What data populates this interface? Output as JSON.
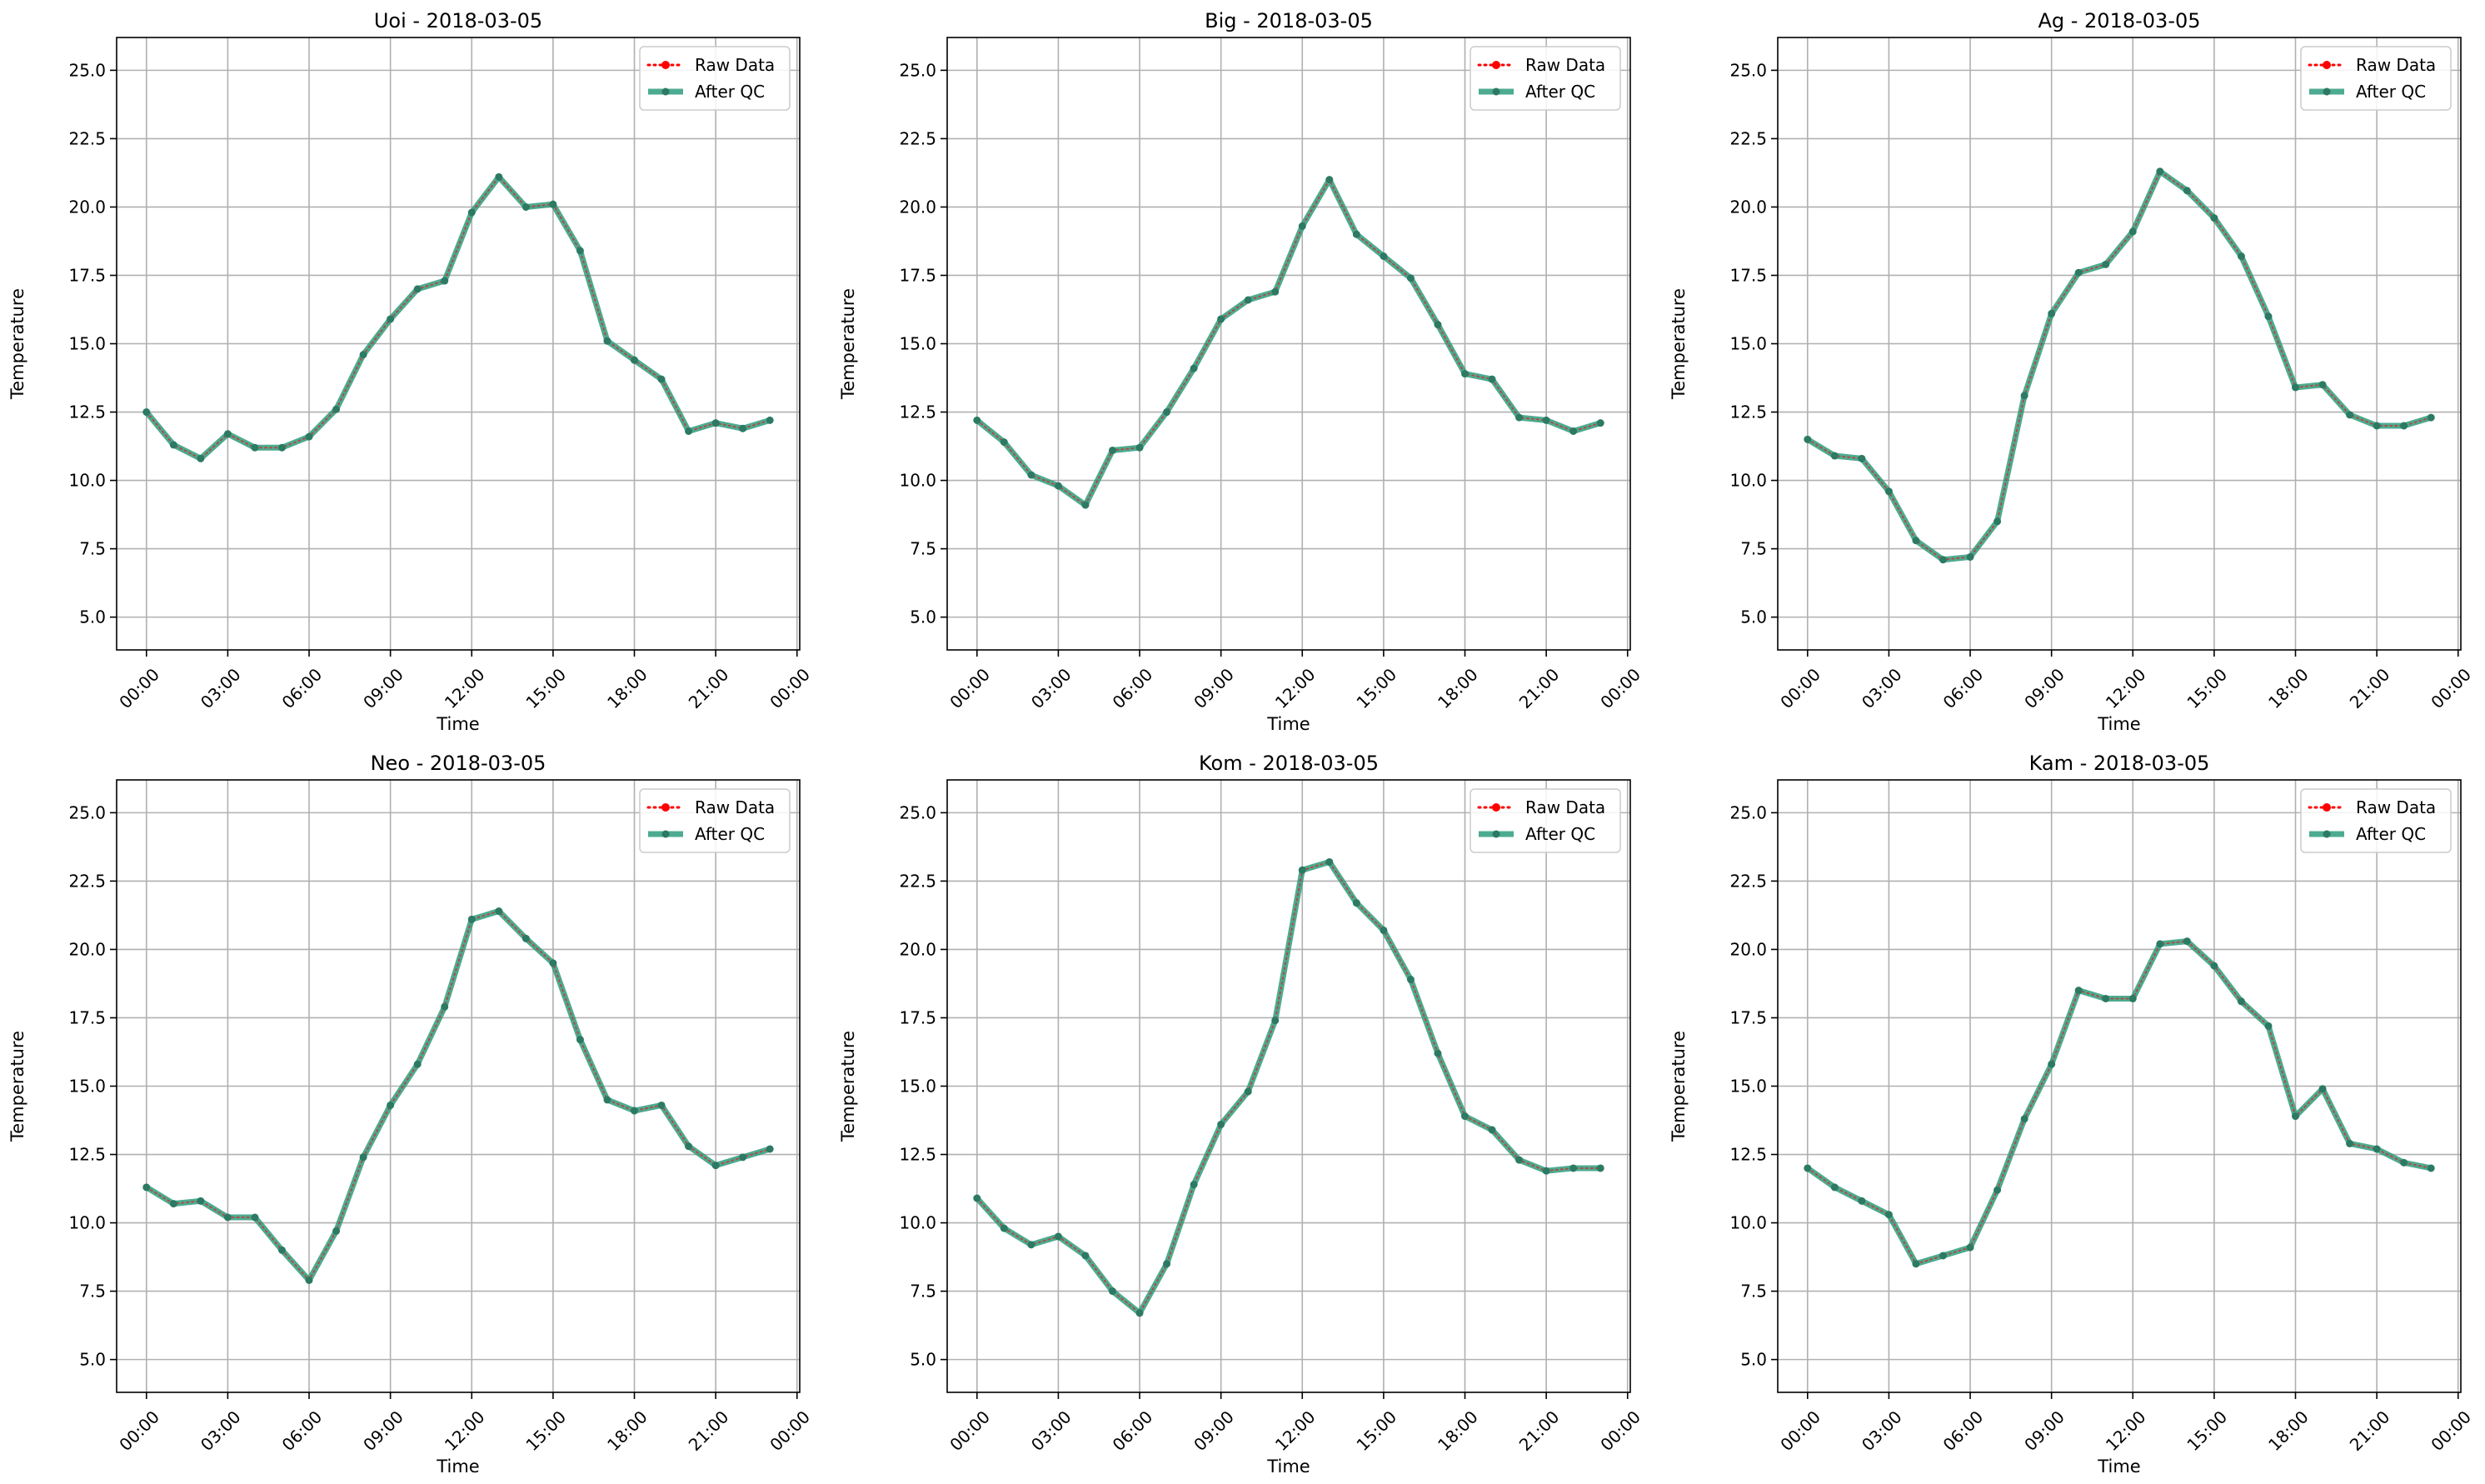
{
  "figure": {
    "background": "#ffffff"
  },
  "colors": {
    "raw": "#ff0000",
    "qc": "#2e9c7e",
    "qc_marker": "#2d7a64",
    "grid": "#b0b0b0",
    "axis": "#000000"
  },
  "legend": {
    "raw_label": "Raw Data",
    "qc_label": "After QC",
    "placement": "top-right"
  },
  "chart_data": [
    {
      "type": "line",
      "title": "Uoi - 2018-03-05",
      "xlabel": "Time",
      "ylabel": "Temperature",
      "xlim": [
        -1.1,
        24.1
      ],
      "ylim": [
        3.8,
        26.2
      ],
      "xticks": [
        0,
        3,
        6,
        9,
        12,
        15,
        18,
        21,
        24
      ],
      "xtick_labels": [
        "00:00",
        "03:00",
        "06:00",
        "09:00",
        "12:00",
        "15:00",
        "18:00",
        "21:00",
        "00:00"
      ],
      "yticks": [
        5.0,
        7.5,
        10.0,
        12.5,
        15.0,
        17.5,
        20.0,
        22.5,
        25.0
      ],
      "ytick_labels": [
        "5.0",
        "7.5",
        "10.0",
        "12.5",
        "15.0",
        "17.5",
        "20.0",
        "22.5",
        "25.0"
      ],
      "grid": true,
      "x": [
        0,
        1,
        2,
        3,
        4,
        5,
        6,
        7,
        8,
        9,
        10,
        11,
        12,
        13,
        14,
        15,
        16,
        17,
        18,
        19,
        20,
        21,
        22,
        23
      ],
      "series": [
        {
          "name": "Raw Data",
          "values": [
            12.5,
            11.3,
            10.8,
            11.7,
            11.2,
            11.2,
            11.6,
            12.6,
            14.6,
            15.9,
            17.0,
            17.3,
            19.8,
            21.1,
            20.0,
            20.1,
            18.4,
            15.1,
            14.4,
            13.7,
            11.8,
            12.1,
            11.9,
            12.2
          ]
        },
        {
          "name": "After QC",
          "values": [
            12.5,
            11.3,
            10.8,
            11.7,
            11.2,
            11.2,
            11.6,
            12.6,
            14.6,
            15.9,
            17.0,
            17.3,
            19.8,
            21.1,
            20.0,
            20.1,
            18.4,
            15.1,
            14.4,
            13.7,
            11.8,
            12.1,
            11.9,
            12.2
          ]
        }
      ]
    },
    {
      "type": "line",
      "title": "Big - 2018-03-05",
      "xlabel": "Time",
      "ylabel": "Temperature",
      "xlim": [
        -1.1,
        24.1
      ],
      "ylim": [
        3.8,
        26.2
      ],
      "xticks": [
        0,
        3,
        6,
        9,
        12,
        15,
        18,
        21,
        24
      ],
      "xtick_labels": [
        "00:00",
        "03:00",
        "06:00",
        "09:00",
        "12:00",
        "15:00",
        "18:00",
        "21:00",
        "00:00"
      ],
      "yticks": [
        5.0,
        7.5,
        10.0,
        12.5,
        15.0,
        17.5,
        20.0,
        22.5,
        25.0
      ],
      "ytick_labels": [
        "5.0",
        "7.5",
        "10.0",
        "12.5",
        "15.0",
        "17.5",
        "20.0",
        "22.5",
        "25.0"
      ],
      "grid": true,
      "x": [
        0,
        1,
        2,
        3,
        4,
        5,
        6,
        7,
        8,
        9,
        10,
        11,
        12,
        13,
        14,
        15,
        16,
        17,
        18,
        19,
        20,
        21,
        22,
        23
      ],
      "series": [
        {
          "name": "Raw Data",
          "values": [
            12.2,
            11.4,
            10.2,
            9.8,
            9.1,
            11.1,
            11.2,
            12.5,
            14.1,
            15.9,
            16.6,
            16.9,
            19.3,
            21.0,
            19.0,
            18.2,
            17.4,
            15.7,
            13.9,
            13.7,
            12.3,
            12.2,
            11.8,
            12.1
          ]
        },
        {
          "name": "After QC",
          "values": [
            12.2,
            11.4,
            10.2,
            9.8,
            9.1,
            11.1,
            11.2,
            12.5,
            14.1,
            15.9,
            16.6,
            16.9,
            19.3,
            21.0,
            19.0,
            18.2,
            17.4,
            15.7,
            13.9,
            13.7,
            12.3,
            12.2,
            11.8,
            12.1
          ]
        }
      ]
    },
    {
      "type": "line",
      "title": "Ag - 2018-03-05",
      "xlabel": "Time",
      "ylabel": "Temperature",
      "xlim": [
        -1.1,
        24.1
      ],
      "ylim": [
        3.8,
        26.2
      ],
      "xticks": [
        0,
        3,
        6,
        9,
        12,
        15,
        18,
        21,
        24
      ],
      "xtick_labels": [
        "00:00",
        "03:00",
        "06:00",
        "09:00",
        "12:00",
        "15:00",
        "18:00",
        "21:00",
        "00:00"
      ],
      "yticks": [
        5.0,
        7.5,
        10.0,
        12.5,
        15.0,
        17.5,
        20.0,
        22.5,
        25.0
      ],
      "ytick_labels": [
        "5.0",
        "7.5",
        "10.0",
        "12.5",
        "15.0",
        "17.5",
        "20.0",
        "22.5",
        "25.0"
      ],
      "grid": true,
      "x": [
        0,
        1,
        2,
        3,
        4,
        5,
        6,
        7,
        8,
        9,
        10,
        11,
        12,
        13,
        14,
        15,
        16,
        17,
        18,
        19,
        20,
        21,
        22,
        23
      ],
      "series": [
        {
          "name": "Raw Data",
          "values": [
            11.5,
            10.9,
            10.8,
            9.6,
            7.8,
            7.1,
            7.2,
            8.5,
            13.1,
            16.1,
            17.6,
            17.9,
            19.1,
            21.3,
            20.6,
            19.6,
            18.2,
            16.0,
            13.4,
            13.5,
            12.4,
            12.0,
            12.0,
            12.3
          ]
        },
        {
          "name": "After QC",
          "values": [
            11.5,
            10.9,
            10.8,
            9.6,
            7.8,
            7.1,
            7.2,
            8.5,
            13.1,
            16.1,
            17.6,
            17.9,
            19.1,
            21.3,
            20.6,
            19.6,
            18.2,
            16.0,
            13.4,
            13.5,
            12.4,
            12.0,
            12.0,
            12.3
          ]
        }
      ]
    },
    {
      "type": "line",
      "title": "Neo - 2018-03-05",
      "xlabel": "Time",
      "ylabel": "Temperature",
      "xlim": [
        -1.1,
        24.1
      ],
      "ylim": [
        3.8,
        26.2
      ],
      "xticks": [
        0,
        3,
        6,
        9,
        12,
        15,
        18,
        21,
        24
      ],
      "xtick_labels": [
        "00:00",
        "03:00",
        "06:00",
        "09:00",
        "12:00",
        "15:00",
        "18:00",
        "21:00",
        "00:00"
      ],
      "yticks": [
        5.0,
        7.5,
        10.0,
        12.5,
        15.0,
        17.5,
        20.0,
        22.5,
        25.0
      ],
      "ytick_labels": [
        "5.0",
        "7.5",
        "10.0",
        "12.5",
        "15.0",
        "17.5",
        "20.0",
        "22.5",
        "25.0"
      ],
      "grid": true,
      "x": [
        0,
        1,
        2,
        3,
        4,
        5,
        6,
        7,
        8,
        9,
        10,
        11,
        12,
        13,
        14,
        15,
        16,
        17,
        18,
        19,
        20,
        21,
        22,
        23
      ],
      "series": [
        {
          "name": "Raw Data",
          "values": [
            11.3,
            10.7,
            10.8,
            10.2,
            10.2,
            9.0,
            7.9,
            9.7,
            12.4,
            14.3,
            15.8,
            17.9,
            21.1,
            21.4,
            20.4,
            19.5,
            16.7,
            14.5,
            14.1,
            14.3,
            12.8,
            12.1,
            12.4,
            12.7
          ]
        },
        {
          "name": "After QC",
          "values": [
            11.3,
            10.7,
            10.8,
            10.2,
            10.2,
            9.0,
            7.9,
            9.7,
            12.4,
            14.3,
            15.8,
            17.9,
            21.1,
            21.4,
            20.4,
            19.5,
            16.7,
            14.5,
            14.1,
            14.3,
            12.8,
            12.1,
            12.4,
            12.7
          ]
        }
      ]
    },
    {
      "type": "line",
      "title": "Kom - 2018-03-05",
      "xlabel": "Time",
      "ylabel": "Temperature",
      "xlim": [
        -1.1,
        24.1
      ],
      "ylim": [
        3.8,
        26.2
      ],
      "xticks": [
        0,
        3,
        6,
        9,
        12,
        15,
        18,
        21,
        24
      ],
      "xtick_labels": [
        "00:00",
        "03:00",
        "06:00",
        "09:00",
        "12:00",
        "15:00",
        "18:00",
        "21:00",
        "00:00"
      ],
      "yticks": [
        5.0,
        7.5,
        10.0,
        12.5,
        15.0,
        17.5,
        20.0,
        22.5,
        25.0
      ],
      "ytick_labels": [
        "5.0",
        "7.5",
        "10.0",
        "12.5",
        "15.0",
        "17.5",
        "20.0",
        "22.5",
        "25.0"
      ],
      "grid": true,
      "x": [
        0,
        1,
        2,
        3,
        4,
        5,
        6,
        7,
        8,
        9,
        10,
        11,
        12,
        13,
        14,
        15,
        16,
        17,
        18,
        19,
        20,
        21,
        22,
        23
      ],
      "series": [
        {
          "name": "Raw Data",
          "values": [
            10.9,
            9.8,
            9.2,
            9.5,
            8.8,
            7.5,
            6.7,
            8.5,
            11.4,
            13.6,
            14.8,
            17.4,
            22.9,
            23.2,
            21.7,
            20.7,
            18.9,
            16.2,
            13.9,
            13.4,
            12.3,
            11.9,
            12.0,
            12.0
          ]
        },
        {
          "name": "After QC",
          "values": [
            10.9,
            9.8,
            9.2,
            9.5,
            8.8,
            7.5,
            6.7,
            8.5,
            11.4,
            13.6,
            14.8,
            17.4,
            22.9,
            23.2,
            21.7,
            20.7,
            18.9,
            16.2,
            13.9,
            13.4,
            12.3,
            11.9,
            12.0,
            12.0
          ]
        }
      ]
    },
    {
      "type": "line",
      "title": "Kam - 2018-03-05",
      "xlabel": "Time",
      "ylabel": "Temperature",
      "xlim": [
        -1.1,
        24.1
      ],
      "ylim": [
        3.8,
        26.2
      ],
      "xticks": [
        0,
        3,
        6,
        9,
        12,
        15,
        18,
        21,
        24
      ],
      "xtick_labels": [
        "00:00",
        "03:00",
        "06:00",
        "09:00",
        "12:00",
        "15:00",
        "18:00",
        "21:00",
        "00:00"
      ],
      "yticks": [
        5.0,
        7.5,
        10.0,
        12.5,
        15.0,
        17.5,
        20.0,
        22.5,
        25.0
      ],
      "ytick_labels": [
        "5.0",
        "7.5",
        "10.0",
        "12.5",
        "15.0",
        "17.5",
        "20.0",
        "22.5",
        "25.0"
      ],
      "grid": true,
      "x": [
        0,
        1,
        2,
        3,
        4,
        5,
        6,
        7,
        8,
        9,
        10,
        11,
        12,
        13,
        14,
        15,
        16,
        17,
        18,
        19,
        20,
        21,
        22,
        23
      ],
      "series": [
        {
          "name": "Raw Data",
          "values": [
            12.0,
            11.3,
            10.8,
            10.3,
            8.5,
            8.8,
            9.1,
            11.2,
            13.8,
            15.8,
            18.5,
            18.2,
            18.2,
            20.2,
            20.3,
            19.4,
            18.1,
            17.2,
            13.9,
            14.9,
            12.9,
            12.7,
            12.2,
            12.0
          ]
        },
        {
          "name": "After QC",
          "values": [
            12.0,
            11.3,
            10.8,
            10.3,
            8.5,
            8.8,
            9.1,
            11.2,
            13.8,
            15.8,
            18.5,
            18.2,
            18.2,
            20.2,
            20.3,
            19.4,
            18.1,
            17.2,
            13.9,
            14.9,
            12.9,
            12.7,
            12.2,
            12.0
          ]
        }
      ]
    }
  ]
}
